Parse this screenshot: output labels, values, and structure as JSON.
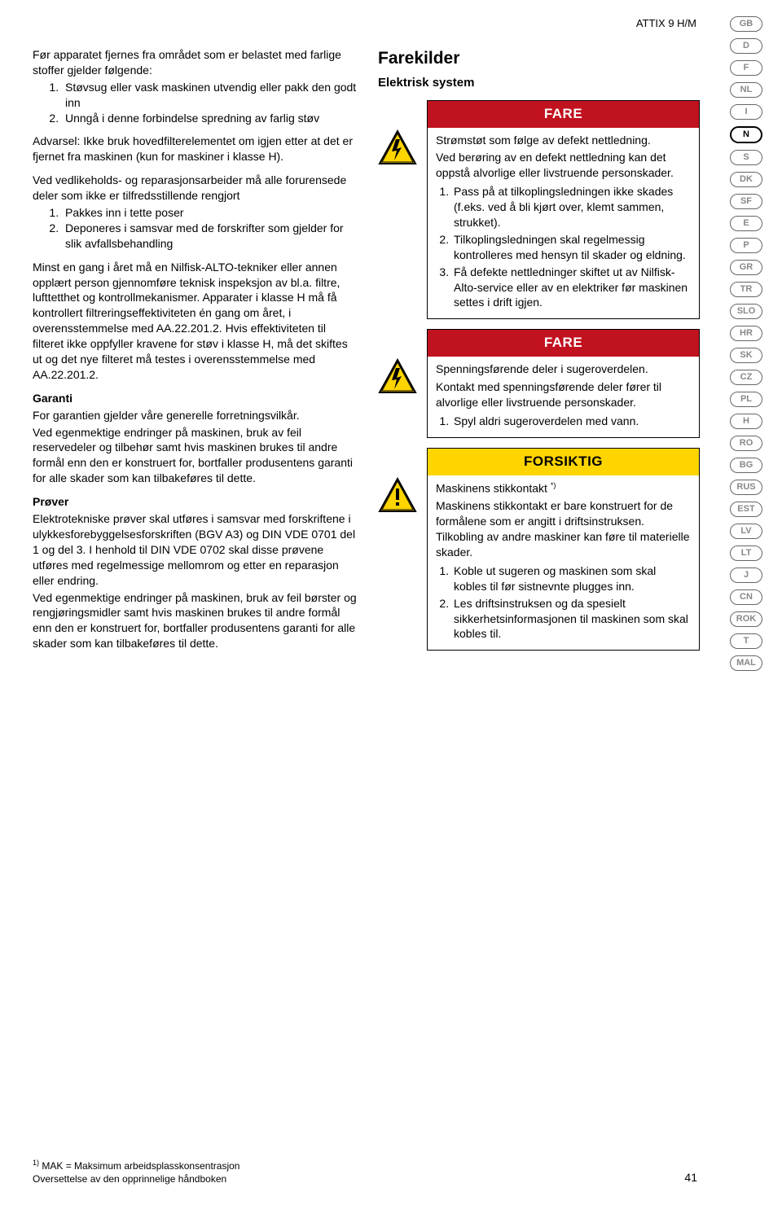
{
  "header_code": "ATTIX 9 H/M",
  "languages": [
    "GB",
    "D",
    "F",
    "NL",
    "I",
    "N",
    "S",
    "DK",
    "SF",
    "E",
    "P",
    "GR",
    "TR",
    "SLO",
    "HR",
    "SK",
    "CZ",
    "PL",
    "H",
    "RO",
    "BG",
    "RUS",
    "EST",
    "LV",
    "LT",
    "J",
    "CN",
    "ROK",
    "T",
    "MAL"
  ],
  "active_language": "N",
  "left": {
    "p1": "Før apparatet fjernes fra området som er belastet med farlige stoffer gjelder følgende:",
    "li1": "Støvsug eller vask maskinen utvendig eller pakk den godt inn",
    "li2": "Unngå i denne forbindelse spredning av farlig støv",
    "p2": "Advarsel: Ikke bruk hovedfilterelementet om igjen etter at det er fjernet fra maskinen (kun for maskiner i klasse H).",
    "p3": "Ved vedlikeholds- og reparasjonsarbeider må alle forurensede deler som ikke er tilfredsstillende rengjort",
    "li3": "Pakkes inn i tette poser",
    "li4": "Deponeres i samsvar med de forskrifter som gjelder for slik avfallsbehandling",
    "p4": "Minst en gang i året må en Nilfisk-ALTO-tekniker eller annen opplært person gjennomføre teknisk inspeksjon av bl.a. filtre, lufttetthet og kontrollmekanismer. Apparater i klasse H må få kontrollert filtreringseffektiviteten én gang om året, i overensstemmelse med AA.22.201.2. Hvis effektiviteten til filteret ikke oppfyller kravene for støv i klasse H, må det skiftes ut og det nye filteret må testes i overensstemmelse med AA.22.201.2.",
    "h_garanti": "Garanti",
    "p5": "For garantien gjelder våre generelle forretningsvilkår.",
    "p6": "Ved egenmektige endringer på maskinen, bruk av feil reservedeler og tilbehør samt hvis maskinen brukes til andre formål enn den er konstruert for, bortfaller produsentens garanti for alle skader som kan tilbakeføres til dette.",
    "h_prover": "Prøver",
    "p7": "Elektrotekniske prøver skal utføres i samsvar med forskriftene i ulykkesforebyggelsesforskriften (BGV A3) og DIN VDE 0701 del 1 og del 3. I henhold til DIN VDE 0702 skal disse prøvene utføres med regelmessige mellomrom og etter en reparasjon eller endring.",
    "p8": "Ved egenmektige endringer på maskinen, bruk av feil børster og rengjøringsmidler samt hvis maskinen brukes til andre formål enn den er konstruert for, bortfaller produsentens garanti for alle skader som kan tilbakeføres til dette."
  },
  "right": {
    "h1": "Farekilder",
    "h2": "Elektrisk system",
    "box1": {
      "title": "FARE",
      "p1": "Strømstøt som følge av defekt nettledning.",
      "p2": "Ved berøring av en defekt nettledning kan det oppstå alvorlige eller livstruende personskader.",
      "li1": "Pass på at tilkoplingsledningen ikke skades (f.eks. ved å bli kjørt over, klemt sammen, strukket).",
      "li2": "Tilkoplingsledningen skal regelmessig kontrolleres med hensyn til skader og eldning.",
      "li3": "Få defekte nettledninger skiftet ut av Nilfisk-Alto-service eller av en elektriker før maskinen settes i drift igjen."
    },
    "box2": {
      "title": "FARE",
      "p1": "Spenningsførende deler i sugeroverdelen.",
      "p2": "Kontakt med spenningsførende deler fører til alvorlige eller livstruende personskader.",
      "li1": "Spyl aldri sugeroverdelen med vann."
    },
    "box3": {
      "title": "FORSIKTIG",
      "p1a": "Maskinens stikkontakt ",
      "p1b": "*)",
      "p2": "Maskinens stikkontakt er bare konstruert for de formålene som er angitt i driftsinstruksen. Tilkobling av andre maskiner kan føre til materielle skader.",
      "li1": "Koble ut sugeren og maskinen som skal kobles til før sistnevnte plugges inn.",
      "li2": "Les driftsinstruksen og da spesielt sikkerhetsinformasjonen til maskinen som skal kobles til."
    }
  },
  "footer": {
    "left1": "1) MAK = Maksimum arbeidsplasskonsentrasjon",
    "left2": "Oversettelse av den opprinnelige håndboken",
    "page": "41"
  },
  "colors": {
    "red": "#c1121f",
    "yellow": "#ffd500"
  }
}
